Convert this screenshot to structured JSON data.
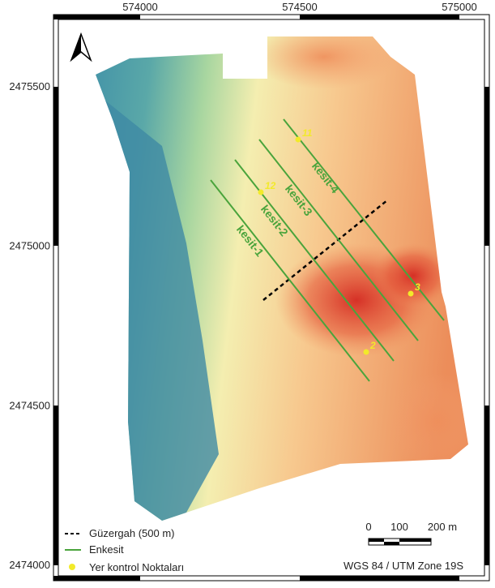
{
  "map": {
    "coordinates": {
      "easting": [
        "574000",
        "574500",
        "575000"
      ],
      "northing": [
        "2475500",
        "2475000",
        "2474500",
        "2474000"
      ]
    },
    "annotations": {
      "sections": [
        "kesit-1",
        "kesit-2",
        "kesit-3",
        "kesit-4"
      ],
      "points": [
        "11",
        "12",
        "3",
        "2"
      ]
    },
    "legend": [
      "Güzergah (500 m)",
      "Enkesit",
      "Yer kontrol Noktaları"
    ],
    "scale_bar": [
      "0",
      "100",
      "200 m"
    ],
    "crs": "WGS 84 / UTM Zone 19S"
  }
}
